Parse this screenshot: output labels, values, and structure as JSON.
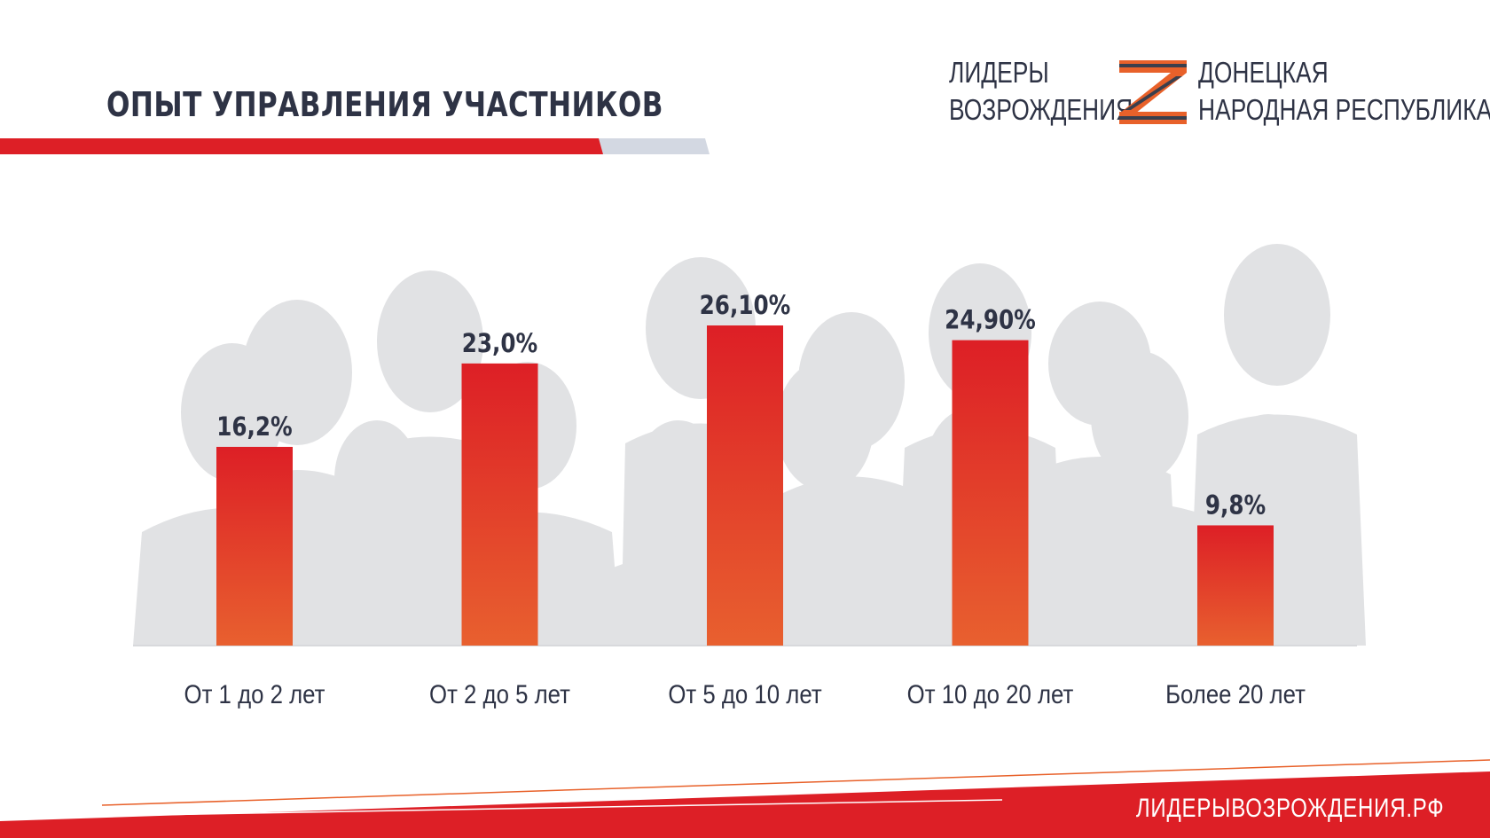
{
  "header": {
    "title": "ОПЫТ УПРАВЛЕНИЯ УЧАСТНИКОВ"
  },
  "logo": {
    "line1": "ЛИДЕРЫ",
    "line2": "ВОЗРОЖДЕНИЯ",
    "line3": "ДОНЕЦКАЯ",
    "line4": "НАРОДНАЯ РЕСПУБЛИКА"
  },
  "footer": {
    "url": "ЛИДЕРЫВОЗРОЖДЕНИЯ.РФ"
  },
  "colors": {
    "accent_red": "#dd1f26",
    "bar_top": "#dd1f26",
    "bar_bottom": "#e8602f",
    "text_dark": "#2e3345",
    "silhouette": "#e1e2e4",
    "stripe_gray": "#d3d8e2",
    "ribbon_orange": "#e8612a",
    "ribbon_dark": "#3a3f4d"
  },
  "chart_data": {
    "type": "bar",
    "title": "ОПЫТ УПРАВЛЕНИЯ УЧАСТНИКОВ",
    "categories": [
      "От 1 до 2 лет",
      "От 2 до 5 лет",
      "От 5 до 10 лет",
      "От 10 до 20 лет",
      "Более 20 лет"
    ],
    "values": [
      16.2,
      23.0,
      26.1,
      24.9,
      9.8
    ],
    "value_labels": [
      "16,2%",
      "23,0%",
      "26,10%",
      "24,90%",
      "9,8%"
    ],
    "ylim": [
      0,
      26.1
    ],
    "grid": false,
    "legend": "none"
  }
}
